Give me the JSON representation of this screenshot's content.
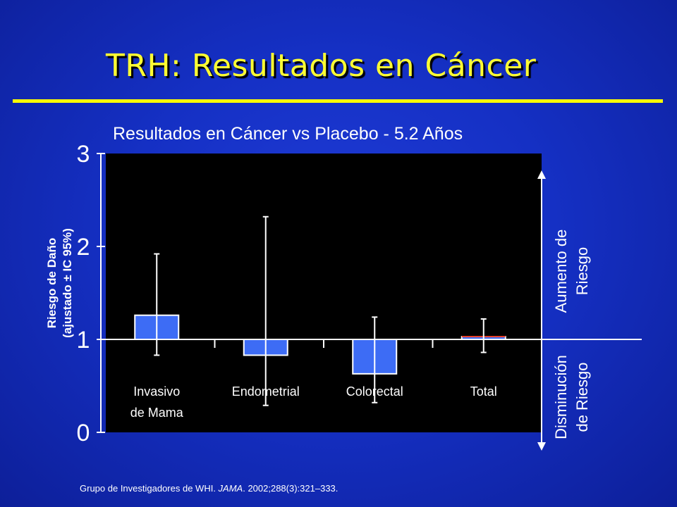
{
  "slide": {
    "title": "TRH: Resultados en Cáncer",
    "citation_pre": "Grupo de Investigadores de WHI. ",
    "citation_journal": "JAMA",
    "citation_post": ". 2002;288(3):321–333."
  },
  "chart_data": {
    "type": "bar",
    "title": "Resultados en Cáncer vs Placebo -  5.2 Años",
    "ylabel": "Riesgo de Daño (ajustado ± IC 95%)",
    "ylabel_line1": "Riesgo de Daño",
    "ylabel_line2": "(ajustado ± IC 95%)",
    "ylim": [
      0,
      3
    ],
    "yticks": [
      "0",
      "1",
      "2",
      "3"
    ],
    "baseline": 1,
    "categories": [
      {
        "line1": "Invasivo",
        "line2": "de Mama"
      },
      {
        "line1": "Endometrial",
        "line2": ""
      },
      {
        "line1": "Colorectal",
        "line2": ""
      },
      {
        "line1": "Total",
        "line2": ""
      }
    ],
    "values": [
      1.26,
      0.83,
      0.63,
      1.03
    ],
    "ci_low": [
      0.83,
      0.29,
      0.32,
      0.86
    ],
    "ci_high": [
      1.92,
      2.32,
      1.24,
      1.22
    ],
    "bar_colors": [
      "#3d6cf5",
      "#3d6cf5",
      "#3d6cf5",
      "#3d6cf5"
    ],
    "ci_colors": [
      "#ffffff",
      "#ffffff",
      "#ffffff",
      "#ffffff"
    ],
    "mean_marker_color": "#e8402a",
    "plot_background": "#000000",
    "right_labels": {
      "increase_line1": "Aumento de",
      "increase_line2": "Riesgo",
      "decrease_line1": "Disminución",
      "decrease_line2": "de Riesgo"
    }
  }
}
